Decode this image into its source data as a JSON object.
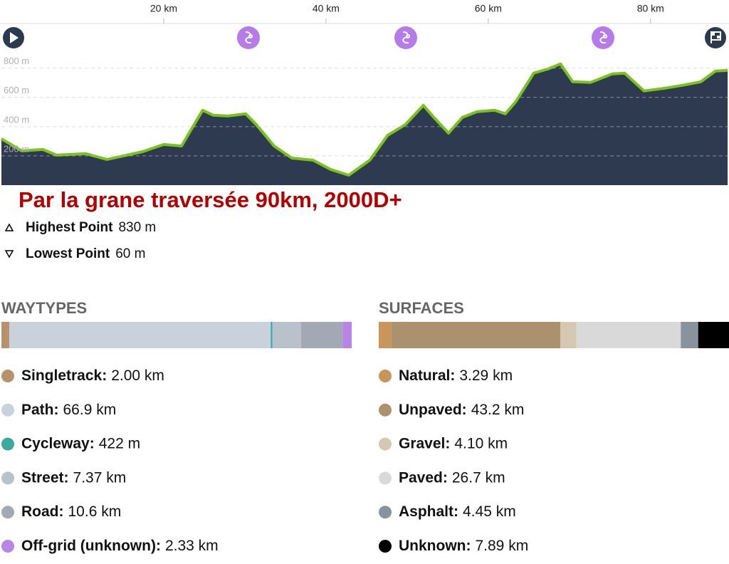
{
  "chart_data": {
    "type": "area",
    "x": [
      0,
      2.5,
      5.1,
      6.8,
      10.4,
      13.0,
      17.4,
      20.0,
      22.2,
      23.5,
      24.8,
      26.1,
      27.9,
      30.1,
      31.4,
      33.6,
      35.8,
      38.4,
      40.6,
      42.8,
      45.4,
      47.6,
      49.8,
      52.0,
      53.3,
      55.1,
      56.8,
      58.6,
      60.8,
      62.1,
      63.4,
      65.6,
      67.4,
      68.9,
      70.4,
      72.6,
      75.3,
      76.8,
      79.2,
      81.8,
      84.0,
      86.2,
      88.0,
      89.5
    ],
    "values": [
      317,
      234,
      244,
      205,
      215,
      176,
      229,
      278,
      268,
      390,
      512,
      478,
      473,
      488,
      415,
      268,
      185,
      171,
      107,
      68,
      171,
      341,
      415,
      546,
      463,
      356,
      463,
      502,
      512,
      488,
      571,
      766,
      795,
      829,
      707,
      702,
      761,
      766,
      644,
      663,
      683,
      707,
      780,
      785
    ],
    "xlim": [
      0,
      89.67
    ],
    "ylim": [
      0,
      930
    ],
    "xticks": [
      {
        "value": 20,
        "label": "20 km"
      },
      {
        "value": 40,
        "label": "40 km"
      },
      {
        "value": 60,
        "label": "60 km"
      },
      {
        "value": 80,
        "label": "80 km"
      }
    ],
    "yticks": [
      {
        "value": 200,
        "label": "200 m"
      },
      {
        "value": 400,
        "label": "400 m"
      },
      {
        "value": 600,
        "label": "600 m"
      },
      {
        "value": 800,
        "label": "800 m"
      }
    ],
    "grid": true,
    "color": "#7cc21f",
    "fill": "#2e3a4f"
  },
  "title": "Par la grane traversée 90km, 2000D+",
  "stats": [
    {
      "label": "Highest Point",
      "value": "830 m"
    },
    {
      "label": "Lowest Point",
      "value": "60 m"
    }
  ],
  "waytypes": {
    "heading": "WAYTYPES",
    "items": [
      {
        "name": "Singletrack:",
        "color": "#b5926b",
        "value": 2.0,
        "value_label": "2.00 km"
      },
      {
        "name": "Path:",
        "color": "#c9d2dc",
        "value": 66.9,
        "value_label": "66.9 km"
      },
      {
        "name": "Cycleway:",
        "color": "#3aa99f",
        "value": 0.422,
        "value_label": "422 m"
      },
      {
        "name": "Street:",
        "color": "#b9c1ca",
        "value": 7.37,
        "value_label": "7.37 km"
      },
      {
        "name": "Road:",
        "color": "#a2a9b5",
        "value": 10.6,
        "value_label": "10.6 km"
      },
      {
        "name": "Off-grid (unknown):",
        "color": "#b884e6",
        "value": 2.33,
        "value_label": "2.33 km"
      }
    ]
  },
  "surfaces": {
    "heading": "SURFACES",
    "items": [
      {
        "name": "Natural:",
        "color": "#c9955a",
        "value": 3.29,
        "value_label": "3.29 km"
      },
      {
        "name": "Unpaved:",
        "color": "#ac916e",
        "value": 43.2,
        "value_label": "43.2 km"
      },
      {
        "name": "Gravel:",
        "color": "#d4c8b2",
        "value": 4.1,
        "value_label": "4.10 km"
      },
      {
        "name": "Paved:",
        "color": "#d9d9d9",
        "value": 26.7,
        "value_label": "26.7 km"
      },
      {
        "name": "Asphalt:",
        "color": "#8a929e",
        "value": 4.45,
        "value_label": "4.45 km"
      },
      {
        "name": "Unknown:",
        "color": "#000000",
        "value": 7.89,
        "value_label": "7.89 km"
      }
    ]
  }
}
